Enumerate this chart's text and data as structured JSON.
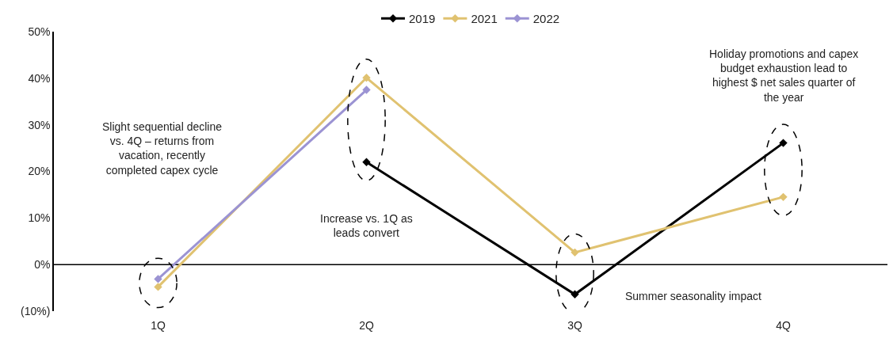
{
  "chart_data": {
    "type": "line",
    "categories": [
      "1Q",
      "2Q",
      "3Q",
      "4Q"
    ],
    "series": [
      {
        "name": "2019",
        "color": "#000000",
        "values": [
          null,
          22.0,
          -6.4,
          26.1
        ]
      },
      {
        "name": "2021",
        "color": "#e0c270",
        "values": [
          -4.8,
          40.1,
          2.6,
          14.5
        ]
      },
      {
        "name": "2022",
        "color": "#9b93d3",
        "values": [
          -3.1,
          37.5,
          null,
          null
        ]
      }
    ],
    "ylim": [
      -10,
      50
    ],
    "yticks": [
      {
        "value": -10,
        "label": "(10%)"
      },
      {
        "value": 0,
        "label": "0%"
      },
      {
        "value": 10,
        "label": "10%"
      },
      {
        "value": 20,
        "label": "20%"
      },
      {
        "value": 30,
        "label": "30%"
      },
      {
        "value": 40,
        "label": "40%"
      },
      {
        "value": 50,
        "label": "50%"
      }
    ],
    "annotations": [
      "Slight sequential decline\nvs. 4Q – returns from\nvacation, recently\ncompleted capex cycle",
      "Increase vs. 1Q as\nleads convert",
      "Summer seasonality impact",
      "Holiday promotions and capex\nbudget exhaustion lead to\nhighest $ net sales quarter of\nthe year"
    ],
    "ref_lines": [
      {
        "axis": "y",
        "value": 0,
        "color": "#000000"
      }
    ],
    "grid": false,
    "legend": "top",
    "marker": "diamond",
    "line_style": "solid"
  }
}
